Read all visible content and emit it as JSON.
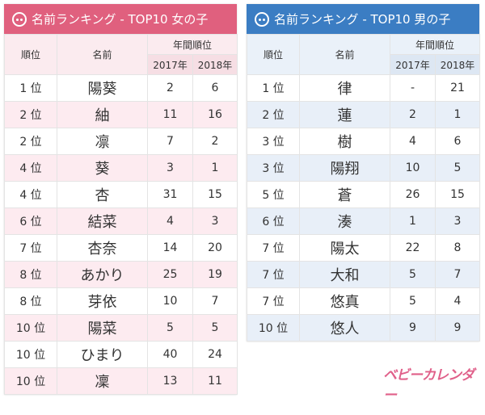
{
  "girls": {
    "title": "名前ランキング - TOP10 女の子",
    "icon": "girl-face-icon",
    "accent": "#e0607e",
    "headers": {
      "rank": "順位",
      "name": "名前",
      "yearly": "年間順位",
      "y2017": "2017年",
      "y2018": "2018年"
    },
    "rows": [
      {
        "rank": "1 位",
        "name": "陽葵",
        "y2017": "2",
        "y2018": "6"
      },
      {
        "rank": "2 位",
        "name": "紬",
        "y2017": "11",
        "y2018": "16"
      },
      {
        "rank": "2 位",
        "name": "凛",
        "y2017": "7",
        "y2018": "2"
      },
      {
        "rank": "4 位",
        "name": "葵",
        "y2017": "3",
        "y2018": "1"
      },
      {
        "rank": "4 位",
        "name": "杏",
        "y2017": "31",
        "y2018": "15"
      },
      {
        "rank": "6 位",
        "name": "結菜",
        "y2017": "4",
        "y2018": "3"
      },
      {
        "rank": "7 位",
        "name": "杏奈",
        "y2017": "14",
        "y2018": "20"
      },
      {
        "rank": "8 位",
        "name": "あかり",
        "y2017": "25",
        "y2018": "19"
      },
      {
        "rank": "8 位",
        "name": "芽依",
        "y2017": "10",
        "y2018": "7"
      },
      {
        "rank": "10 位",
        "name": "陽菜",
        "y2017": "5",
        "y2018": "5"
      },
      {
        "rank": "10 位",
        "name": "ひまり",
        "y2017": "40",
        "y2018": "24"
      },
      {
        "rank": "10 位",
        "name": "凜",
        "y2017": "13",
        "y2018": "11"
      }
    ]
  },
  "boys": {
    "title": "名前ランキング - TOP10 男の子",
    "icon": "boy-face-icon",
    "accent": "#3b7dc3",
    "headers": {
      "rank": "順位",
      "name": "名前",
      "yearly": "年間順位",
      "y2017": "2017年",
      "y2018": "2018年"
    },
    "rows": [
      {
        "rank": "1 位",
        "name": "律",
        "y2017": "-",
        "y2018": "21"
      },
      {
        "rank": "2 位",
        "name": "蓮",
        "y2017": "2",
        "y2018": "1"
      },
      {
        "rank": "3 位",
        "name": "樹",
        "y2017": "4",
        "y2018": "6"
      },
      {
        "rank": "3 位",
        "name": "陽翔",
        "y2017": "10",
        "y2018": "5"
      },
      {
        "rank": "5 位",
        "name": "蒼",
        "y2017": "26",
        "y2018": "15"
      },
      {
        "rank": "6 位",
        "name": "湊",
        "y2017": "1",
        "y2018": "3"
      },
      {
        "rank": "7 位",
        "name": "陽太",
        "y2017": "22",
        "y2018": "8"
      },
      {
        "rank": "7 位",
        "name": "大和",
        "y2017": "5",
        "y2018": "7"
      },
      {
        "rank": "7 位",
        "name": "悠真",
        "y2017": "5",
        "y2018": "4"
      },
      {
        "rank": "10 位",
        "name": "悠人",
        "y2017": "9",
        "y2018": "9"
      }
    ]
  },
  "logo": "ベビーカレンダー"
}
